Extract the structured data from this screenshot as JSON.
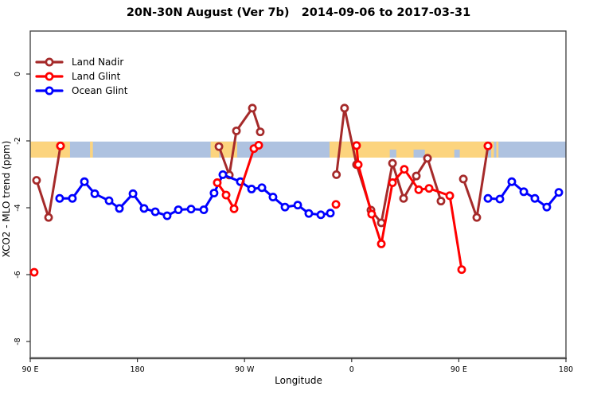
{
  "title": "20N-30N August (Ver 7b)   2014-09-06 to 2017-03-31",
  "xlabel": "Longitude",
  "ylabel": "XCO2 - MLO trend (ppm)",
  "legend": {
    "items": [
      {
        "label": "Land Nadir",
        "color": "#A52A2A"
      },
      {
        "label": "Land Glint",
        "color": "#FF0000"
      },
      {
        "label": "Ocean Glint",
        "color": "#0000FF"
      }
    ]
  },
  "chart_data": {
    "type": "line",
    "title": "20N-30N August (Ver 7b)   2014-09-06 to 2017-03-31",
    "xlabel": "Longitude",
    "ylabel": "XCO2 - MLO trend (ppm)",
    "x_axis": {
      "note": "longitude axis wraps eastward from 90E; positions stored as degrees east of 90E",
      "range_deg": [
        0,
        450
      ],
      "tick_deg": [
        0,
        90,
        180,
        270,
        360,
        450
      ],
      "tick_labels": [
        "90 E",
        "180",
        "90 W",
        "0",
        "90 E",
        "180"
      ]
    },
    "y_axis": {
      "range": [
        1.2857,
        -8.5
      ],
      "ticks": [
        0,
        -2,
        -4,
        -6,
        -8
      ],
      "tick_labels": [
        "0",
        "-2",
        "-4",
        "-6",
        "-8"
      ]
    },
    "map_band": {
      "comment": "world-map strip for the 20N-30N latitude belt",
      "y_top": -2.02,
      "y_bottom": -2.5,
      "ocean_color": "#aec2e0",
      "land_color": "#fcd47e",
      "land_segments_deg": [
        [
          0,
          33.4
        ],
        [
          50.2,
          52.6
        ],
        [
          151.5,
          173.8
        ],
        [
          251.4,
          384.5
        ],
        [
          387.2,
          389.5
        ],
        [
          391.5,
          393.3
        ]
      ],
      "ocean_patches_deg": [
        {
          "deg": [
            158.8,
            160.6
          ],
          "part": "bottom"
        },
        {
          "deg": [
            188.0,
            193.5
          ],
          "part": "top"
        },
        {
          "deg": [
            302.0,
            307.5
          ],
          "part": "bottom"
        },
        {
          "deg": [
            322.0,
            331.5
          ],
          "part": "bottom"
        },
        {
          "deg": [
            356.2,
            360.8
          ],
          "part": "bottom"
        }
      ]
    },
    "series": [
      {
        "name": "Land Nadir",
        "color": "#A52A2A",
        "segments": [
          [
            [
              5.3,
              -3.18
            ],
            [
              15.4,
              -4.29
            ],
            [
              25.4,
              -2.15
            ]
          ],
          [
            [
              158.5,
              -2.17
            ],
            [
              167.2,
              -3.02
            ],
            [
              173.2,
              -1.7
            ],
            [
              186.6,
              -1.02
            ],
            [
              193.2,
              -1.73
            ]
          ],
          [
            [
              257.2,
              -3.01
            ],
            [
              264.0,
              -1.02
            ],
            [
              274.1,
              -2.71
            ],
            [
              286.2,
              -4.07
            ],
            [
              294.9,
              -4.45
            ],
            [
              304.3,
              -2.67
            ],
            [
              313.6,
              -3.72
            ],
            [
              324.3,
              -3.05
            ],
            [
              333.7,
              -2.52
            ],
            [
              345.0,
              -3.8
            ]
          ],
          [
            [
              363.8,
              -3.14
            ],
            [
              375.1,
              -4.29
            ],
            [
              384.5,
              -2.15
            ]
          ]
        ],
        "isolated_points": []
      },
      {
        "name": "Land Glint",
        "color": "#FF0000",
        "segments": [
          [
            [
              157.1,
              -3.25
            ],
            [
              164.5,
              -3.62
            ],
            [
              171.2,
              -4.03
            ],
            [
              187.9,
              -2.23
            ],
            [
              191.9,
              -2.13
            ]
          ],
          [
            [
              274.1,
              -2.14
            ],
            [
              275.5,
              -2.71
            ],
            [
              286.8,
              -4.19
            ],
            [
              294.9,
              -5.08
            ],
            [
              304.3,
              -3.25
            ],
            [
              314.2,
              -2.85
            ],
            [
              326.3,
              -3.46
            ],
            [
              335.0,
              -3.42
            ],
            [
              352.4,
              -3.64
            ],
            [
              362.4,
              -5.85
            ]
          ]
        ],
        "isolated_points": [
          [
            3.3,
            -5.93
          ],
          [
            25.4,
            -2.15
          ],
          [
            256.8,
            -3.9
          ],
          [
            384.5,
            -2.15
          ]
        ]
      },
      {
        "name": "Ocean Glint",
        "color": "#0000FF",
        "segments": [
          [
            [
              24.7,
              -3.72
            ],
            [
              35.4,
              -3.72
            ],
            [
              45.5,
              -3.22
            ],
            [
              54.2,
              -3.58
            ],
            [
              66.2,
              -3.79
            ],
            [
              74.9,
              -4.02
            ],
            [
              86.3,
              -3.58
            ],
            [
              95.6,
              -4.02
            ],
            [
              105.0,
              -4.12
            ],
            [
              115.0,
              -4.24
            ],
            [
              124.4,
              -4.06
            ],
            [
              135.1,
              -4.04
            ],
            [
              145.8,
              -4.06
            ],
            [
              154.4,
              -3.56
            ],
            [
              161.8,
              -3.01
            ],
            [
              176.5,
              -3.22
            ],
            [
              185.9,
              -3.44
            ],
            [
              194.6,
              -3.4
            ],
            [
              203.9,
              -3.68
            ],
            [
              214.0,
              -3.98
            ],
            [
              224.7,
              -3.92
            ],
            [
              234.0,
              -4.17
            ],
            [
              244.1,
              -4.21
            ],
            [
              252.1,
              -4.16
            ]
          ],
          [
            [
              384.5,
              -3.72
            ],
            [
              394.5,
              -3.74
            ],
            [
              404.5,
              -3.22
            ],
            [
              414.6,
              -3.52
            ],
            [
              423.9,
              -3.72
            ],
            [
              433.9,
              -3.98
            ],
            [
              444.0,
              -3.54
            ]
          ]
        ],
        "isolated_points": []
      }
    ],
    "legend_position": "top-left",
    "grid": false
  }
}
